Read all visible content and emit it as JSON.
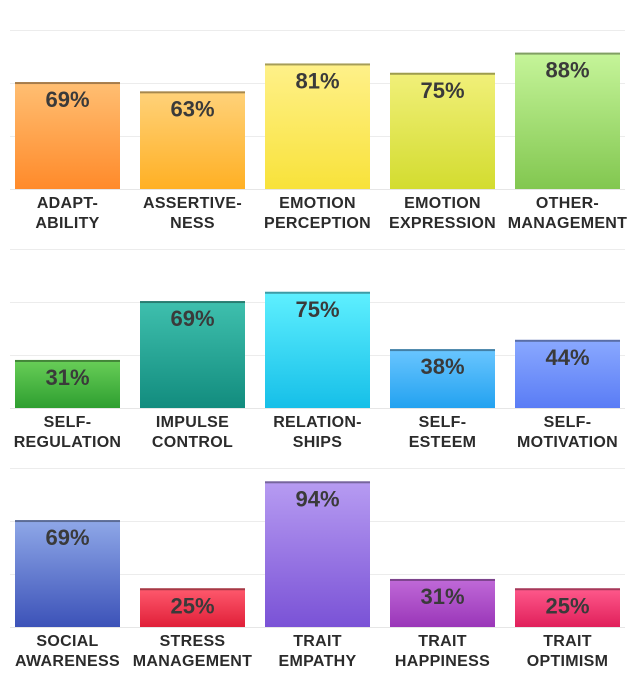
{
  "chart_data": {
    "type": "bar",
    "ylim": [
      0,
      100
    ],
    "value_suffix": "%",
    "rows": [
      {
        "categories": [
          {
            "name": "adaptability",
            "lines": [
              "ADAPT-",
              "ABILITY"
            ],
            "value": 69,
            "color_top": "#ffbf73",
            "color_bottom": "#ff8a2a"
          },
          {
            "name": "assertiveness",
            "lines": [
              "ASSERTIVE-",
              "NESS"
            ],
            "value": 63,
            "color_top": "#ffd27a",
            "color_bottom": "#ffb024"
          },
          {
            "name": "emotion-perception",
            "lines": [
              "EMOTION",
              "PERCEPTION"
            ],
            "value": 81,
            "color_top": "#fff18a",
            "color_bottom": "#f8e23a"
          },
          {
            "name": "emotion-expression",
            "lines": [
              "EMOTION",
              "EXPRESSION"
            ],
            "value": 75,
            "color_top": "#f1f07a",
            "color_bottom": "#d3dc2f"
          },
          {
            "name": "other-management",
            "lines": [
              "OTHER-",
              "MANAGEMENT"
            ],
            "value": 88,
            "color_top": "#c6f59a",
            "color_bottom": "#82c750"
          }
        ]
      },
      {
        "categories": [
          {
            "name": "self-regulation",
            "lines": [
              "SELF-",
              "REGULATION"
            ],
            "value": 31,
            "color_top": "#69cf58",
            "color_bottom": "#2e9f30"
          },
          {
            "name": "impulse-control",
            "lines": [
              "IMPULSE",
              "CONTROL"
            ],
            "value": 69,
            "color_top": "#3fc0ae",
            "color_bottom": "#128c7e"
          },
          {
            "name": "relationships",
            "lines": [
              "RELATION-",
              "SHIPS"
            ],
            "value": 75,
            "color_top": "#5ff0ff",
            "color_bottom": "#16bfe8"
          },
          {
            "name": "self-esteem",
            "lines": [
              "SELF-",
              "ESTEEM"
            ],
            "value": 38,
            "color_top": "#6ac6ff",
            "color_bottom": "#23a2f0"
          },
          {
            "name": "self-motivation",
            "lines": [
              "SELF-",
              "MOTIVATION"
            ],
            "value": 44,
            "color_top": "#8aa9ff",
            "color_bottom": "#5a7cf5"
          }
        ]
      },
      {
        "categories": [
          {
            "name": "social-awareness",
            "lines": [
              "SOCIAL",
              "AWARENESS"
            ],
            "value": 69,
            "color_top": "#8fa8e8",
            "color_bottom": "#3c52b8"
          },
          {
            "name": "stress-management",
            "lines": [
              "STRESS",
              "MANAGEMENT"
            ],
            "value": 25,
            "color_top": "#ff5a6e",
            "color_bottom": "#e01f38"
          },
          {
            "name": "trait-empathy",
            "lines": [
              "TRAIT",
              "EMPATHY"
            ],
            "value": 94,
            "color_top": "#b79cf2",
            "color_bottom": "#7a52d6"
          },
          {
            "name": "trait-happiness",
            "lines": [
              "TRAIT",
              "HAPPINESS"
            ],
            "value": 31,
            "color_top": "#c06ad8",
            "color_bottom": "#9a36b8"
          },
          {
            "name": "trait-optimism",
            "lines": [
              "TRAIT",
              "OPTIMISM"
            ],
            "value": 25,
            "color_top": "#ff5a8c",
            "color_bottom": "#e01f5a"
          }
        ]
      }
    ]
  }
}
